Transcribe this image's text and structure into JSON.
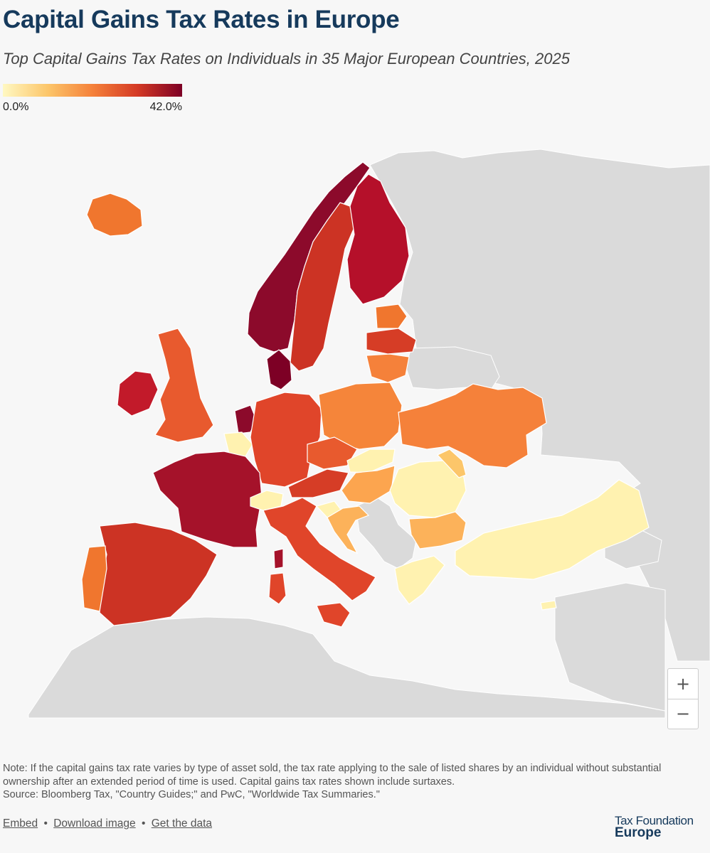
{
  "title": "Capital Gains Tax Rates in Europe",
  "subtitle": "Top Capital Gains Tax Rates on Individuals in 35 Major European Countries, 2025",
  "legend": {
    "min_label": "0.0%",
    "max_label": "42.0%",
    "min_value": 0.0,
    "max_value": 42.0,
    "color_min": "#fff8c2",
    "color_mid": "#f5813a",
    "color_max": "#7d0025"
  },
  "map": {
    "colors": {
      "no_data": "#dadada",
      "sea": "#f7f7f7",
      "border": "#ffffff"
    }
  },
  "zoom": {
    "in_label": "+",
    "out_label": "−"
  },
  "note": {
    "line1": "Note: If the capital gains tax rate varies by type of asset sold, the tax rate applying to the sale of listed shares by an individual without substantial ownership after an extended period of time is used. Capital gains tax rates shown include surtaxes.",
    "line2": "Source: Bloomberg Tax, \"Country Guides;\" and PwC, \"Worldwide Tax Summaries.\""
  },
  "links": {
    "embed": "Embed",
    "download": "Download image",
    "get_data": "Get the data",
    "separator": "•"
  },
  "logo": {
    "line1": "Tax Foundation",
    "line2": "Europe"
  }
}
